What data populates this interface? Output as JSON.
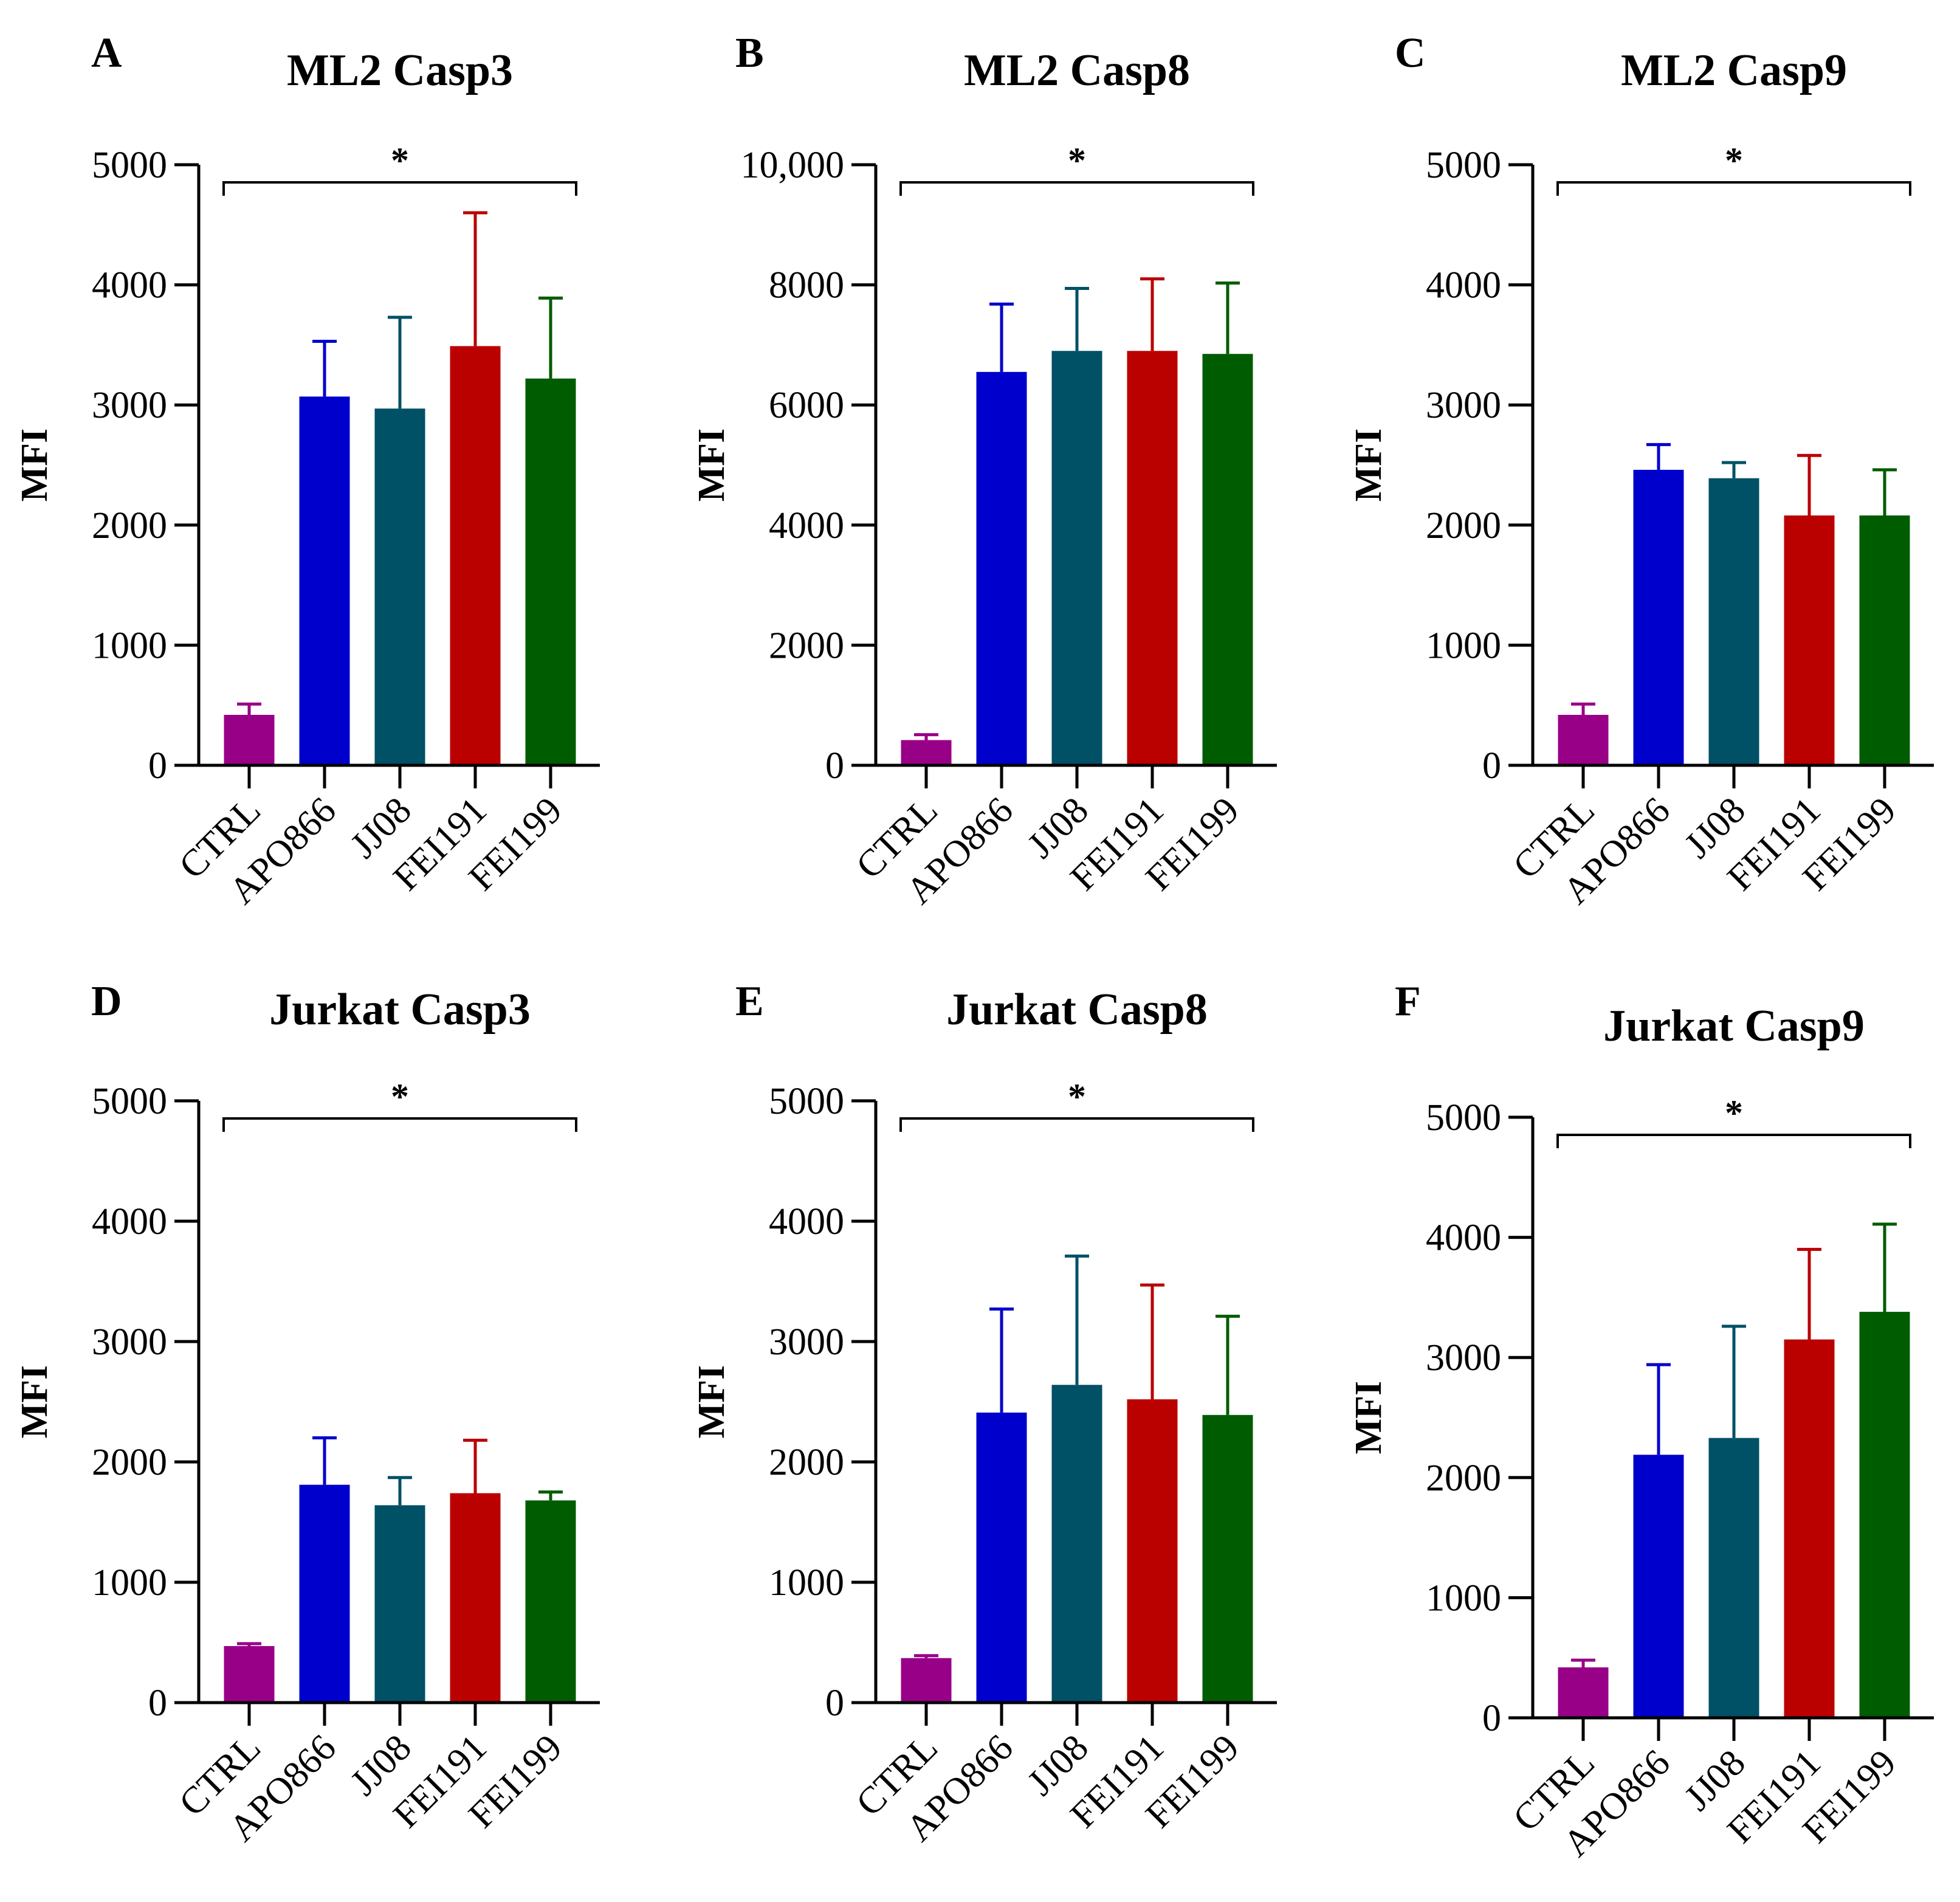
{
  "chart_data": [
    {
      "type": "bar",
      "panel": "A",
      "title": "ML2 Casp3",
      "ylabel": "MFI",
      "ylim": [
        0,
        5000
      ],
      "yticks": [
        0,
        1000,
        2000,
        3000,
        4000,
        5000
      ],
      "ytick_labels": [
        "0",
        "1000",
        "2000",
        "3000",
        "4000",
        "5000"
      ],
      "categories": [
        "CTRL",
        "APO866",
        "JJ08",
        "FEI191",
        "FEI199"
      ],
      "values": [
        420,
        3070,
        2970,
        3490,
        3220
      ],
      "errors": [
        90,
        460,
        760,
        1110,
        670
      ],
      "significance": "*"
    },
    {
      "type": "bar",
      "panel": "B",
      "title": "ML2 Casp8",
      "ylabel": "MFI",
      "ylim": [
        0,
        10000
      ],
      "yticks": [
        0,
        2000,
        4000,
        6000,
        8000,
        10000
      ],
      "ytick_labels": [
        "0",
        "2000",
        "4000",
        "6000",
        "8000",
        "10,000"
      ],
      "categories": [
        "CTRL",
        "APO866",
        "JJ08",
        "FEI191",
        "FEI199"
      ],
      "values": [
        420,
        6550,
        6900,
        6900,
        6850
      ],
      "errors": [
        90,
        1130,
        1040,
        1200,
        1180
      ],
      "significance": "*"
    },
    {
      "type": "bar",
      "panel": "C",
      "title": "ML2 Casp9",
      "ylabel": "MFI",
      "ylim": [
        0,
        5000
      ],
      "yticks": [
        0,
        1000,
        2000,
        3000,
        4000,
        5000
      ],
      "ytick_labels": [
        "0",
        "1000",
        "2000",
        "3000",
        "4000",
        "5000"
      ],
      "categories": [
        "CTRL",
        "APO866",
        "JJ08",
        "FEI191",
        "FEI199"
      ],
      "values": [
        420,
        2460,
        2390,
        2080,
        2080
      ],
      "errors": [
        90,
        210,
        130,
        500,
        380
      ],
      "significance": "*"
    },
    {
      "type": "bar",
      "panel": "D",
      "title": "Jurkat Casp3",
      "ylabel": "MFI",
      "ylim": [
        0,
        5000
      ],
      "yticks": [
        0,
        1000,
        2000,
        3000,
        4000,
        5000
      ],
      "ytick_labels": [
        "0",
        "1000",
        "2000",
        "3000",
        "4000",
        "5000"
      ],
      "categories": [
        "CTRL",
        "APO866",
        "JJ08",
        "FEI191",
        "FEI199"
      ],
      "values": [
        470,
        1810,
        1640,
        1740,
        1680
      ],
      "errors": [
        20,
        390,
        230,
        440,
        70
      ],
      "significance": "*"
    },
    {
      "type": "bar",
      "panel": "E",
      "title": "Jurkat Casp8",
      "ylabel": "MFI",
      "ylim": [
        0,
        5000
      ],
      "yticks": [
        0,
        1000,
        2000,
        3000,
        4000,
        5000
      ],
      "ytick_labels": [
        "0",
        "1000",
        "2000",
        "3000",
        "4000",
        "5000"
      ],
      "categories": [
        "CTRL",
        "APO866",
        "JJ08",
        "FEI191",
        "FEI199"
      ],
      "values": [
        370,
        2410,
        2640,
        2520,
        2390
      ],
      "errors": [
        20,
        860,
        1070,
        950,
        820
      ],
      "significance": "*"
    },
    {
      "type": "bar",
      "panel": "F",
      "title": "Jurkat Casp9",
      "ylabel": "MFI",
      "ylim": [
        0,
        5000
      ],
      "yticks": [
        0,
        1000,
        2000,
        3000,
        4000,
        5000
      ],
      "ytick_labels": [
        "0",
        "1000",
        "2000",
        "3000",
        "4000",
        "5000"
      ],
      "categories": [
        "CTRL",
        "APO866",
        "JJ08",
        "FEI191",
        "FEI199"
      ],
      "values": [
        420,
        2190,
        2330,
        3150,
        3380
      ],
      "errors": [
        60,
        750,
        930,
        750,
        730
      ],
      "significance": "*"
    }
  ],
  "colors": {
    "CTRL": "#990088",
    "APO866": "#0000CC",
    "JJ08": "#005066",
    "FEI191": "#BB0000",
    "FEI199": "#005C00"
  }
}
